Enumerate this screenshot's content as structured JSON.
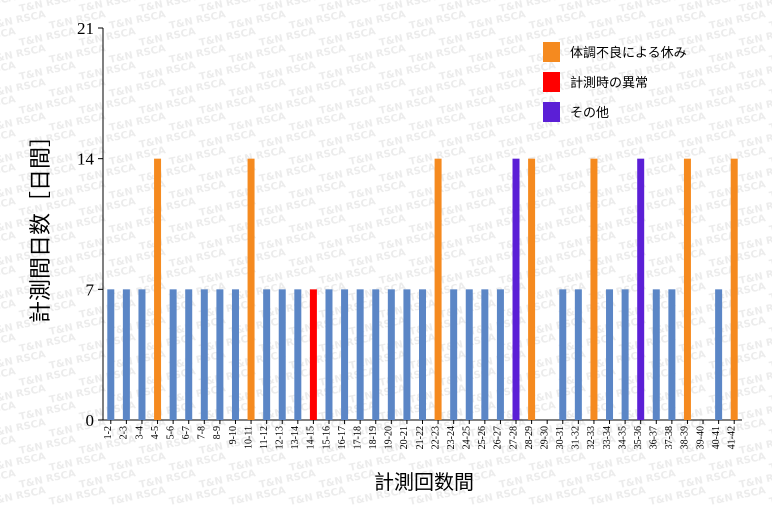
{
  "watermark": "T&N RSCA",
  "chart_data": {
    "type": "bar",
    "ylabel": "計測間日数［日間］",
    "xlabel": "計測回数間",
    "ylim": [
      0,
      21
    ],
    "yticks": [
      0,
      7,
      14,
      21
    ],
    "grid": false,
    "legend_position": "top-right",
    "legend": [
      {
        "label": "体調不良による休み",
        "color": "#f58a1f"
      },
      {
        "label": "計測時の異常",
        "color": "#ff0000"
      },
      {
        "label": "その他",
        "color": "#5b1fd6"
      }
    ],
    "default_color": "#5b86c6",
    "categories": [
      "1-2",
      "2-3",
      "3-4",
      "4-5",
      "5-6",
      "6-7",
      "7-8",
      "8-9",
      "9-10",
      "10-11",
      "11-12",
      "12-13",
      "13-14",
      "14-15",
      "15-16",
      "16-17",
      "17-18",
      "18-19",
      "19-20",
      "20-21",
      "21-22",
      "22-23",
      "23-24",
      "24-25",
      "25-26",
      "26-27",
      "27-28",
      "28-29",
      "29-30",
      "30-31",
      "31-32",
      "32-33",
      "33-34",
      "34-35",
      "35-36",
      "36-37",
      "37-38",
      "38-39",
      "39-40",
      "40-41",
      "41-42"
    ],
    "values": [
      7,
      7,
      7,
      14,
      7,
      7,
      7,
      7,
      7,
      14,
      7,
      7,
      7,
      7,
      7,
      7,
      7,
      7,
      7,
      7,
      7,
      14,
      7,
      7,
      7,
      7,
      14,
      14,
      null,
      7,
      7,
      14,
      7,
      7,
      14,
      7,
      7,
      14,
      null,
      7,
      14
    ],
    "bar_colors": [
      "#5b86c6",
      "#5b86c6",
      "#5b86c6",
      "#f58a1f",
      "#5b86c6",
      "#5b86c6",
      "#5b86c6",
      "#5b86c6",
      "#5b86c6",
      "#f58a1f",
      "#5b86c6",
      "#5b86c6",
      "#5b86c6",
      "#ff0000",
      "#5b86c6",
      "#5b86c6",
      "#5b86c6",
      "#5b86c6",
      "#5b86c6",
      "#5b86c6",
      "#5b86c6",
      "#f58a1f",
      "#5b86c6",
      "#5b86c6",
      "#5b86c6",
      "#5b86c6",
      "#5b1fd6",
      "#f58a1f",
      "#5b86c6",
      "#5b86c6",
      "#5b86c6",
      "#f58a1f",
      "#5b86c6",
      "#5b86c6",
      "#5b1fd6",
      "#5b86c6",
      "#5b86c6",
      "#f58a1f",
      "#5b86c6",
      "#5b86c6",
      "#f58a1f"
    ]
  }
}
